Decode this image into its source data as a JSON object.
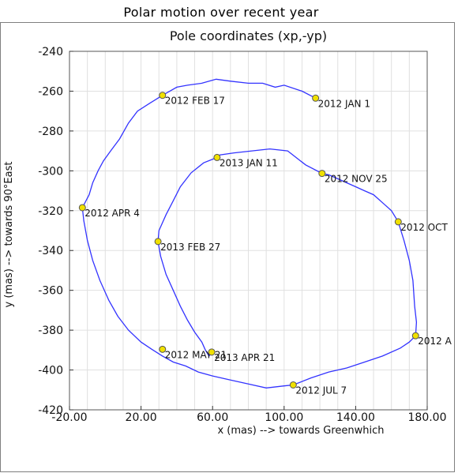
{
  "page": {
    "title": "Polar motion over recent year"
  },
  "chart_data": {
    "type": "line",
    "title": "Pole coordinates (xp,-yp)",
    "xlabel": "x (mas) --> towards Greenwhich",
    "ylabel": "y (mas) --> towards 90°East",
    "xlim": [
      -20,
      180
    ],
    "ylim": [
      -420,
      -240
    ],
    "x_ticks": [
      -20,
      20,
      60,
      100,
      140,
      180
    ],
    "x_tick_labels": [
      "-20.00",
      "20.00",
      "60.00",
      "100.00",
      "140.00",
      "180.00"
    ],
    "y_ticks": [
      -240,
      -260,
      -280,
      -300,
      -320,
      -340,
      -360,
      -380,
      -400,
      -420
    ],
    "y_tick_labels": [
      "-240",
      "-260",
      "-280",
      "-300",
      "-320",
      "-340",
      "-360",
      "-380",
      "-400",
      "-420"
    ],
    "grid": true,
    "line_color": "#3333ff",
    "marker_color": "#f0e000",
    "series": [
      {
        "x": [
          117.6,
          110,
          100,
          95,
          88,
          80,
          70,
          62,
          54,
          46,
          40,
          32,
          25,
          18,
          13,
          8,
          3,
          -1,
          -4,
          -7,
          -9,
          -12.8,
          -12,
          -10,
          -7,
          -3,
          2,
          7,
          13,
          20,
          26,
          32,
          38,
          45,
          52,
          60,
          70,
          80,
          90,
          100,
          105.1,
          115,
          125,
          135,
          145,
          155,
          165,
          170,
          173.5,
          174,
          173,
          172,
          170,
          167,
          163.8,
          160,
          155,
          150,
          145,
          140,
          135,
          130,
          125,
          121.2,
          112,
          102,
          92,
          82,
          72,
          64,
          62.5,
          55,
          48,
          42,
          38,
          34,
          30,
          29.5,
          31,
          34,
          38,
          42,
          46,
          50,
          54,
          56,
          58,
          59.5
        ],
        "y": [
          -263.5,
          -260,
          -257,
          -258,
          -256,
          -256,
          -255,
          -254,
          -256,
          -257,
          -258,
          -262.1,
          -266,
          -270,
          -276,
          -284,
          -290,
          -295,
          -300,
          -306,
          -312,
          -318.5,
          -325,
          -335,
          -345,
          -355,
          -365,
          -373,
          -380,
          -386,
          -389.6,
          -393,
          -396,
          -398,
          -401,
          -403,
          -405,
          -407,
          -409,
          -408,
          -407.5,
          -404,
          -401,
          -399,
          -396,
          -393,
          -389,
          -386,
          -382.8,
          -376,
          -368,
          -355,
          -345,
          -335,
          -325.6,
          -320,
          -316,
          -312,
          -310,
          -308,
          -306,
          -304,
          -302,
          -301.3,
          -297,
          -290,
          -289,
          -290,
          -291,
          -292,
          -293.3,
          -296,
          -301,
          -308,
          -315,
          -322,
          -330,
          -335.5,
          -343,
          -352,
          -360,
          -368,
          -375,
          -381,
          -386,
          -390,
          -393,
          -391
        ]
      }
    ],
    "points": [
      {
        "x": 117.6,
        "y": -263.5,
        "label": "2012 JAN 1",
        "anchor": "right"
      },
      {
        "x": 32,
        "y": -262.1,
        "label": "2012 FEB 17",
        "anchor": "right"
      },
      {
        "x": -12.8,
        "y": -318.5,
        "label": "2012 APR 4",
        "anchor": "right"
      },
      {
        "x": 32,
        "y": -389.6,
        "label": "2012 MAY 21",
        "anchor": "right"
      },
      {
        "x": 105.1,
        "y": -407.5,
        "label": "2012 JUL 7",
        "anchor": "right"
      },
      {
        "x": 173.5,
        "y": -382.8,
        "label": "2012 A",
        "anchor": "right"
      },
      {
        "x": 163.8,
        "y": -325.6,
        "label": "2012 OCT",
        "anchor": "right"
      },
      {
        "x": 121.2,
        "y": -301.3,
        "label": "2012 NOV 25",
        "anchor": "right"
      },
      {
        "x": 62.5,
        "y": -293.3,
        "label": "2013 JAN 11",
        "anchor": "right"
      },
      {
        "x": 29.5,
        "y": -335.5,
        "label": "2013 FEB 27",
        "anchor": "right"
      },
      {
        "x": 59.5,
        "y": -391,
        "label": "2013 APR 21",
        "anchor": "right"
      }
    ]
  }
}
